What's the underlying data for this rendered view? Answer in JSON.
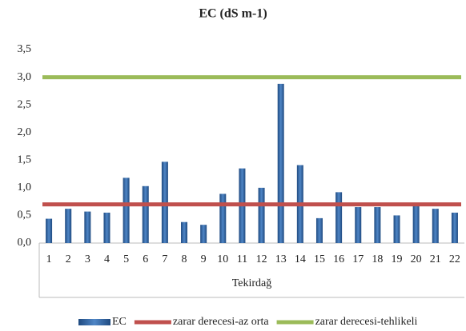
{
  "chart_data": {
    "type": "bar",
    "title": "EC (dS m-1)",
    "x_group_label": "Tekirdağ",
    "categories": [
      "1",
      "2",
      "3",
      "4",
      "5",
      "6",
      "7",
      "8",
      "9",
      "10",
      "11",
      "12",
      "13",
      "14",
      "15",
      "16",
      "17",
      "18",
      "19",
      "20",
      "21",
      "22"
    ],
    "series": [
      {
        "name": "EC",
        "color": "#2f5f9e",
        "type": "bar",
        "values": [
          0.44,
          0.62,
          0.57,
          0.55,
          1.18,
          1.03,
          1.47,
          0.38,
          0.33,
          0.89,
          1.35,
          1.0,
          2.88,
          1.41,
          0.45,
          0.92,
          0.65,
          0.65,
          0.5,
          0.72,
          0.62,
          0.55
        ]
      },
      {
        "name": "zarar derecesi-az orta",
        "color": "#c0504d",
        "type": "line",
        "values": [
          0.7,
          0.7,
          0.7,
          0.7,
          0.7,
          0.7,
          0.7,
          0.7,
          0.7,
          0.7,
          0.7,
          0.7,
          0.7,
          0.7,
          0.7,
          0.7,
          0.7,
          0.7,
          0.7,
          0.7,
          0.7,
          0.7
        ]
      },
      {
        "name": "zarar derecesi-tehlikeli",
        "color": "#9bbb59",
        "type": "line",
        "values": [
          3.0,
          3.0,
          3.0,
          3.0,
          3.0,
          3.0,
          3.0,
          3.0,
          3.0,
          3.0,
          3.0,
          3.0,
          3.0,
          3.0,
          3.0,
          3.0,
          3.0,
          3.0,
          3.0,
          3.0,
          3.0,
          3.0
        ]
      }
    ],
    "ylim": [
      0,
      3.5
    ],
    "yticks": [
      {
        "value": 0,
        "label": "0,0"
      },
      {
        "value": 0.5,
        "label": "0,5"
      },
      {
        "value": 1,
        "label": "1,0"
      },
      {
        "value": 1.5,
        "label": "1,5"
      },
      {
        "value": 2,
        "label": "2,0"
      },
      {
        "value": 2.5,
        "label": "2,5"
      },
      {
        "value": 3,
        "label": "3,0"
      },
      {
        "value": 3.5,
        "label": "3,5"
      }
    ],
    "grid": false,
    "legend": "bottom"
  }
}
